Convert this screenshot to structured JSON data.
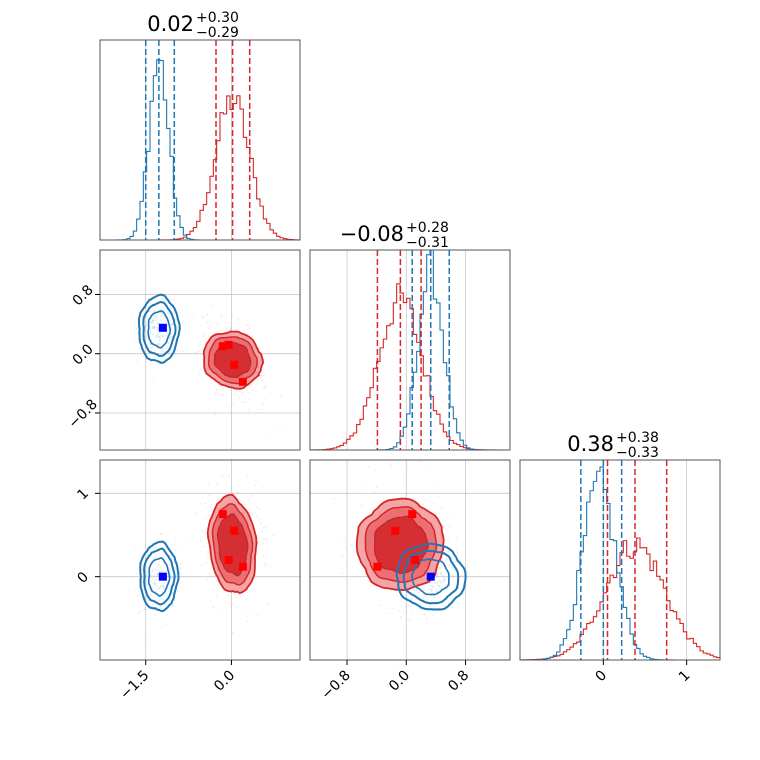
{
  "chart_data": {
    "type": "corner",
    "colors": {
      "series_a": "#d62728",
      "series_b": "#1f77b4",
      "marker": "#0000ff",
      "grid": "#c8c8c8"
    },
    "series": [
      {
        "color": "#d62728"
      },
      {
        "color": "#1f77b4"
      }
    ],
    "parameters": [
      {
        "title": "0.02",
        "title_plus": "+0.30",
        "title_minus": "−0.29",
        "range": [
          -2.3,
          1.2
        ],
        "ticks": [
          -1.5,
          0.0
        ],
        "tick_labels": [
          "−1.5",
          "0.0"
        ]
      },
      {
        "title": "−0.08",
        "title_plus": "+0.28",
        "title_minus": "−0.31",
        "range": [
          -1.3,
          1.4
        ],
        "ticks": [
          -0.8,
          0.0,
          0.8
        ],
        "tick_labels": [
          "−0.8",
          "0.0",
          "0.8"
        ]
      },
      {
        "title": "0.38",
        "title_plus": "+0.38",
        "title_minus": "−0.33",
        "range": [
          -1.0,
          1.4
        ],
        "ticks": [
          0,
          1
        ],
        "tick_labels": [
          "0",
          "1"
        ]
      }
    ],
    "quantile_lines": {
      "p0": {
        "series_a": [
          -0.27,
          0.02,
          0.32
        ],
        "series_b": [
          -1.5,
          -1.27,
          -1.0
        ]
      },
      "p1": {
        "series_a": [
          -0.39,
          -0.08,
          0.2
        ],
        "series_b": [
          0.08,
          0.33,
          0.58
        ]
      },
      "p2": {
        "series_a": [
          0.05,
          0.38,
          0.76
        ],
        "series_b": [
          -0.27,
          0.0,
          0.22
        ]
      }
    },
    "markers_p0_p1": {
      "series_a": [
        [
          -0.15,
          0.1
        ],
        [
          -0.05,
          0.12
        ],
        [
          0.05,
          -0.15
        ],
        [
          0.2,
          -0.38
        ]
      ],
      "series_b": [
        [
          -1.2,
          0.35
        ]
      ]
    },
    "markers_p0_p2": {
      "series_a": [
        [
          -0.15,
          0.75
        ],
        [
          0.05,
          0.55
        ],
        [
          -0.05,
          0.2
        ],
        [
          0.2,
          0.12
        ]
      ],
      "series_b": [
        [
          -1.2,
          0.0
        ]
      ]
    },
    "markers_p1_p2": {
      "series_a": [
        [
          0.08,
          0.75
        ],
        [
          -0.15,
          0.55
        ],
        [
          0.12,
          0.2
        ],
        [
          -0.39,
          0.12
        ]
      ],
      "series_b": [
        [
          0.33,
          0.0
        ]
      ]
    },
    "grid": true
  }
}
